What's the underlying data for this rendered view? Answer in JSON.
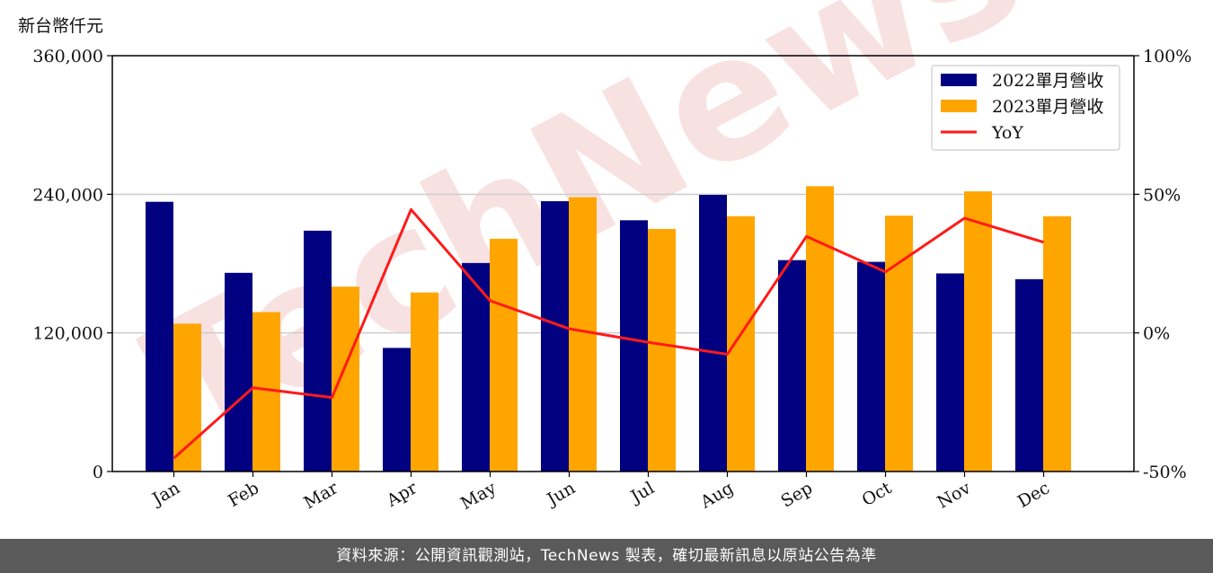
{
  "unit_label": "新台幣仟元",
  "footer": "資料來源：公開資訊觀測站，TechNews 製表，確切最新訊息以原站公告為準",
  "watermark": "TechNews",
  "colors": {
    "series_2022": "#000080",
    "series_2023": "#ffa500",
    "yoy": "#ff1a1a",
    "grid": "#cccccc",
    "watermark": "#f2c8c8"
  },
  "chart_data": {
    "type": "bar",
    "categories": [
      "Jan",
      "Feb",
      "Mar",
      "Apr",
      "May",
      "Jun",
      "Jul",
      "Aug",
      "Sep",
      "Oct",
      "Nov",
      "Dec"
    ],
    "series": [
      {
        "name": "2022單月營收",
        "values": [
          233500,
          172000,
          208500,
          107000,
          180500,
          234000,
          217500,
          239500,
          183000,
          181500,
          171500,
          166500
        ]
      },
      {
        "name": "2023單月營收",
        "values": [
          128000,
          138000,
          160000,
          155000,
          201500,
          237500,
          210000,
          221000,
          247000,
          221500,
          242500,
          221000
        ]
      }
    ],
    "line_series": {
      "name": "YoY",
      "axis": "right",
      "values": [
        -45.2,
        -19.8,
        -23.3,
        44.5,
        11.6,
        1.5,
        -3.4,
        -7.7,
        34.8,
        22.0,
        41.4,
        32.7
      ]
    },
    "ylim": [
      0,
      360000
    ],
    "yticks": [
      "0",
      "120,000",
      "240,000",
      "360,000"
    ],
    "y2lim": [
      -50,
      100
    ],
    "y2ticks": [
      "-50%",
      "0%",
      "50%",
      "100%"
    ],
    "grid": "horizontal",
    "legend": "top-right"
  }
}
